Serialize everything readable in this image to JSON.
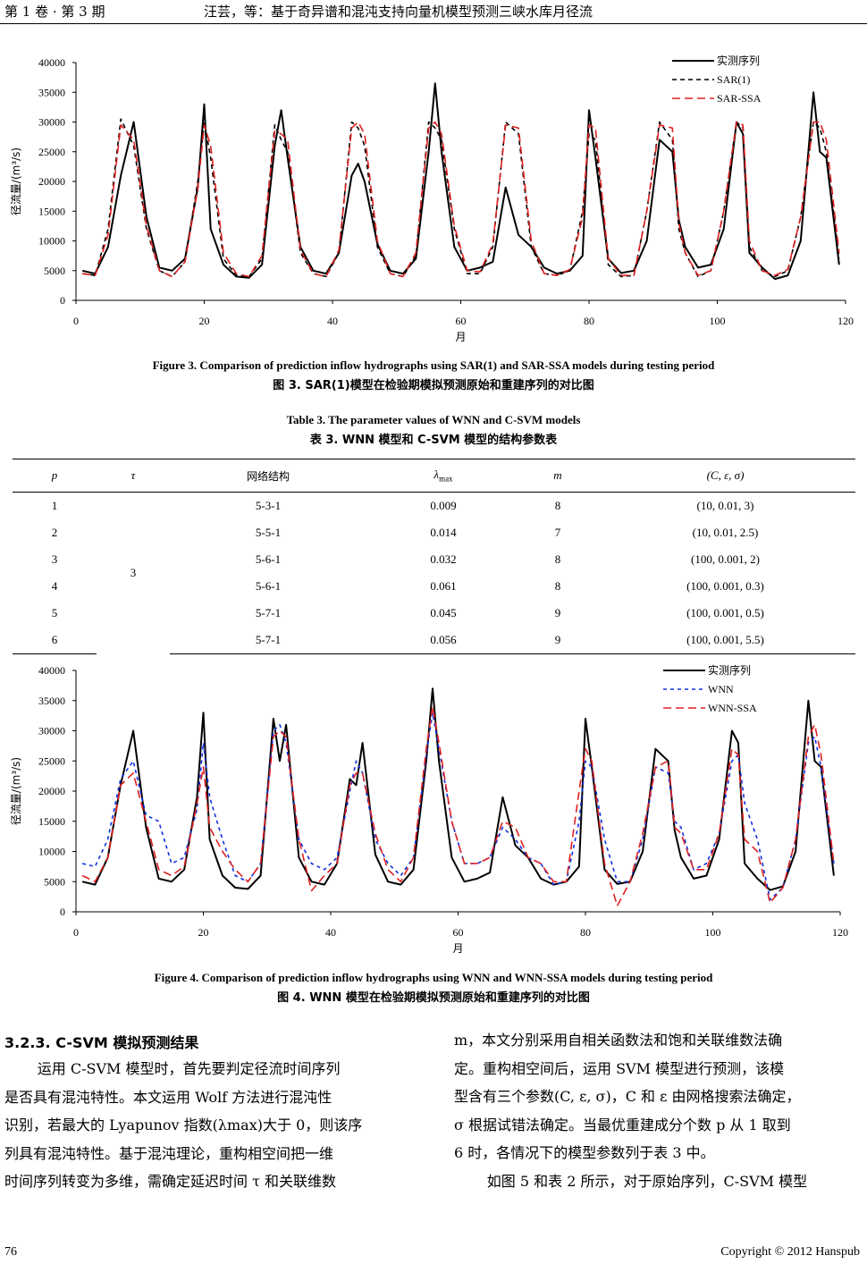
{
  "header": {
    "left": "第 1 卷 · 第 3 期",
    "title": "汪芸，等：基于奇异谱和混沌支持向量机模型预测三峡水库月径流"
  },
  "figure3": {
    "caption_en": "Figure 3. Comparison of prediction inflow hydrographs using SAR(1) and SAR-SSA models during testing period",
    "caption_zh": "图 3. SAR(1)模型在检验期模拟预测原始和重建序列的对比图",
    "chart_data": {
      "type": "line",
      "ylabel": "径流量/(m³/s)",
      "xlabel": "月",
      "xlim": [
        0,
        120
      ],
      "ylim": [
        0,
        40000
      ],
      "xticks": [
        "0",
        "20",
        "40",
        "60",
        "80",
        "100",
        "120"
      ],
      "yticks": [
        "0",
        "5000",
        "10000",
        "15000",
        "20000",
        "25000",
        "30000",
        "35000",
        "40000"
      ],
      "x": [
        1,
        3,
        5,
        7,
        9,
        11,
        13,
        15,
        17,
        19,
        20,
        21,
        23,
        25,
        27,
        29,
        31,
        32,
        33,
        35,
        37,
        39,
        41,
        43,
        44,
        45,
        47,
        49,
        51,
        53,
        55,
        56,
        57,
        59,
        61,
        63,
        65,
        67,
        69,
        71,
        73,
        75,
        77,
        79,
        80,
        81,
        83,
        85,
        87,
        89,
        91,
        93,
        94,
        95,
        97,
        99,
        101,
        103,
        104,
        105,
        107,
        109,
        111,
        113,
        115,
        116,
        117,
        119
      ],
      "series": [
        {
          "name": "实测序列",
          "color": "#000000",
          "dash": "solid",
          "values": [
            5000,
            4500,
            9000,
            21000,
            30000,
            14000,
            5500,
            5000,
            7000,
            19000,
            33000,
            12000,
            6000,
            4000,
            3800,
            6000,
            26000,
            32000,
            24000,
            9000,
            5000,
            4500,
            8000,
            21000,
            23000,
            20000,
            9500,
            5000,
            4500,
            7000,
            25000,
            36500,
            25000,
            9000,
            5000,
            5500,
            6500,
            19000,
            11000,
            9000,
            5500,
            4500,
            5000,
            7500,
            32000,
            24000,
            7000,
            4600,
            5000,
            10000,
            27000,
            25000,
            13500,
            9000,
            5500,
            6000,
            12000,
            30000,
            28000,
            8000,
            5500,
            3600,
            4200,
            10000,
            35000,
            25000,
            24000,
            6000
          ]
        },
        {
          "name": "SAR(1)",
          "color": "#000000",
          "dash": "5,4",
          "values": [
            4500,
            4200,
            12000,
            30500,
            26000,
            12000,
            5000,
            4000,
            6500,
            20000,
            30000,
            24000,
            7000,
            4200,
            4000,
            7000,
            29500,
            27000,
            25000,
            8000,
            4500,
            4000,
            8000,
            30000,
            29000,
            26000,
            9000,
            4500,
            4000,
            7500,
            30000,
            29000,
            27000,
            12000,
            4500,
            4500,
            9000,
            30000,
            28000,
            9000,
            4500,
            4200,
            5000,
            15000,
            28000,
            27000,
            6000,
            4000,
            4200,
            15000,
            30000,
            27000,
            12000,
            8000,
            4000,
            5000,
            15000,
            30000,
            29000,
            9000,
            5000,
            4000,
            5000,
            14000,
            30000,
            29000,
            25000,
            7000
          ]
        },
        {
          "name": "SAR-SSA",
          "color": "#e02020",
          "dash": "9,5",
          "values": [
            4500,
            4200,
            11000,
            29500,
            27000,
            12500,
            5000,
            4000,
            6500,
            19000,
            29500,
            26000,
            8000,
            4500,
            4000,
            7500,
            28500,
            28000,
            27000,
            8500,
            4500,
            4000,
            8500,
            29000,
            30000,
            28000,
            10000,
            4500,
            4000,
            8000,
            29000,
            30000,
            28000,
            12500,
            5000,
            4800,
            9500,
            29500,
            29000,
            10000,
            4500,
            4200,
            5200,
            14000,
            29500,
            29000,
            7000,
            4200,
            4200,
            15000,
            29500,
            29000,
            13000,
            8000,
            4200,
            5000,
            15000,
            30000,
            29500,
            10000,
            5000,
            4200,
            5200,
            14000,
            30000,
            30000,
            27000,
            8000
          ]
        }
      ]
    }
  },
  "table3": {
    "caption_en": "Table 3. The parameter values of WNN and C-SVM models",
    "caption_zh": "表 3. WNN 模型和 C-SVM 模型的结构参数表",
    "headers": [
      "p",
      "τ",
      "网络结构",
      "λmax",
      "m",
      "(C, ε, σ)"
    ],
    "tau_value": "3",
    "rows": [
      [
        "1",
        "5-3-1",
        "0.009",
        "8",
        "(10, 0.01, 3)"
      ],
      [
        "2",
        "5-5-1",
        "0.014",
        "7",
        "(10, 0.01, 2.5)"
      ],
      [
        "3",
        "5-6-1",
        "0.032",
        "8",
        "(100, 0.001, 2)"
      ],
      [
        "4",
        "5-6-1",
        "0.061",
        "8",
        "(100, 0.001, 0.3)"
      ],
      [
        "5",
        "5-7-1",
        "0.045",
        "9",
        "(100, 0.001, 0.5)"
      ],
      [
        "6",
        "5-7-1",
        "0.056",
        "9",
        "(100, 0.001, 5.5)"
      ]
    ]
  },
  "figure4": {
    "caption_en": "Figure 4. Comparison of prediction inflow hydrographs using WNN and WNN-SSA models during testing period",
    "caption_zh": "图 4. WNN 模型在检验期模拟预测原始和重建序列的对比图",
    "chart_data": {
      "type": "line",
      "ylabel": "径流量/(m³/s)",
      "xlabel": "月",
      "xlim": [
        0,
        120
      ],
      "ylim": [
        0,
        40000
      ],
      "xticks": [
        "0",
        "20",
        "40",
        "60",
        "80",
        "100",
        "120"
      ],
      "yticks": [
        "0",
        "5000",
        "10000",
        "15000",
        "20000",
        "25000",
        "30000",
        "35000",
        "40000"
      ],
      "x": [
        1,
        3,
        5,
        7,
        9,
        11,
        13,
        15,
        17,
        19,
        20,
        21,
        23,
        25,
        27,
        29,
        31,
        32,
        33,
        35,
        37,
        39,
        41,
        43,
        44,
        45,
        47,
        49,
        51,
        53,
        55,
        56,
        57,
        59,
        61,
        63,
        65,
        67,
        69,
        71,
        73,
        75,
        77,
        79,
        80,
        81,
        83,
        85,
        87,
        89,
        91,
        93,
        94,
        95,
        97,
        99,
        101,
        103,
        104,
        105,
        107,
        109,
        111,
        113,
        115,
        116,
        117,
        119
      ],
      "series": [
        {
          "name": "实测序列",
          "color": "#000000",
          "dash": "solid",
          "values": [
            5000,
            4500,
            9000,
            21000,
            30000,
            14000,
            5500,
            5000,
            7000,
            19000,
            33000,
            12000,
            6000,
            4000,
            3800,
            6000,
            32000,
            25000,
            31000,
            9000,
            5000,
            4500,
            8000,
            22000,
            21000,
            28000,
            9500,
            5000,
            4500,
            7000,
            25000,
            37000,
            25000,
            9000,
            5000,
            5500,
            6500,
            19000,
            11000,
            9000,
            5500,
            4500,
            5000,
            7500,
            32000,
            24000,
            7000,
            4600,
            5000,
            10000,
            27000,
            25000,
            13500,
            9000,
            5500,
            6000,
            12000,
            30000,
            28000,
            8000,
            5500,
            3600,
            4200,
            10000,
            35000,
            25000,
            24000,
            6000
          ]
        },
        {
          "name": "WNN",
          "color": "#1030e0",
          "dash": "4,4",
          "values": [
            8000,
            7500,
            12000,
            22000,
            25000,
            16000,
            15000,
            8000,
            9000,
            17000,
            28000,
            19000,
            12000,
            6000,
            5000,
            8000,
            30000,
            31000,
            28000,
            12000,
            8000,
            7000,
            9000,
            20000,
            25000,
            23000,
            12000,
            8000,
            6000,
            9000,
            26000,
            33000,
            27000,
            15000,
            8000,
            8000,
            9000,
            14000,
            12000,
            9000,
            8000,
            4500,
            5000,
            15000,
            25000,
            24000,
            12000,
            5000,
            5000,
            12000,
            24000,
            23000,
            15000,
            14000,
            7000,
            8000,
            13000,
            25000,
            26000,
            18000,
            12000,
            2000,
            4000,
            12000,
            28000,
            29000,
            24000,
            8000
          ]
        },
        {
          "name": "WNN-SSA",
          "color": "#e02020",
          "dash": "9,5",
          "values": [
            6000,
            5000,
            9000,
            21000,
            23000,
            15000,
            7000,
            6000,
            7500,
            18000,
            24000,
            14000,
            10000,
            7000,
            5000,
            8000,
            29000,
            30000,
            29000,
            12000,
            3500,
            6000,
            8000,
            21000,
            23000,
            23000,
            13000,
            7000,
            5000,
            9000,
            27000,
            34000,
            28000,
            15000,
            8000,
            8000,
            9000,
            15000,
            14000,
            9000,
            8000,
            5000,
            5000,
            20000,
            27000,
            25000,
            8000,
            1000,
            5000,
            13000,
            24000,
            25000,
            14000,
            13000,
            7000,
            7000,
            13000,
            27000,
            26000,
            12000,
            10000,
            1500,
            4000,
            12000,
            29000,
            31000,
            26000,
            8000
          ]
        }
      ]
    }
  },
  "section": {
    "heading": "3.2.3. C-SVM 模拟预测结果",
    "left_lines": [
      "运用 C-SVM 模型时，首先要判定径流时间序列",
      "是否具有混沌特性。本文运用 Wolf 方法进行混沌性",
      "识别，若最大的 Lyapunov 指数(λmax)大于 0，则该序",
      "列具有混沌特性。基于混沌理论，重构相空间把一维",
      "时间序列转变为多维，需确定延迟时间 τ 和关联维数"
    ],
    "right_lines": [
      "m，本文分别采用自相关函数法和饱和关联维数法确",
      "定。重构相空间后，运用 SVM 模型进行预测，该模",
      "型含有三个参数(C, ε, σ)，C 和 ε 由网格搜索法确定，",
      "σ 根据试错法确定。当最优重建成分个数 p 从 1 取到",
      "6 时，各情况下的模型参数列于表 3 中。",
      "如图 5 和表 2 所示，对于原始序列，C-SVM 模型"
    ]
  },
  "footer": {
    "page_number": "76",
    "copyright": "Copyright © 2012 Hanspub"
  }
}
